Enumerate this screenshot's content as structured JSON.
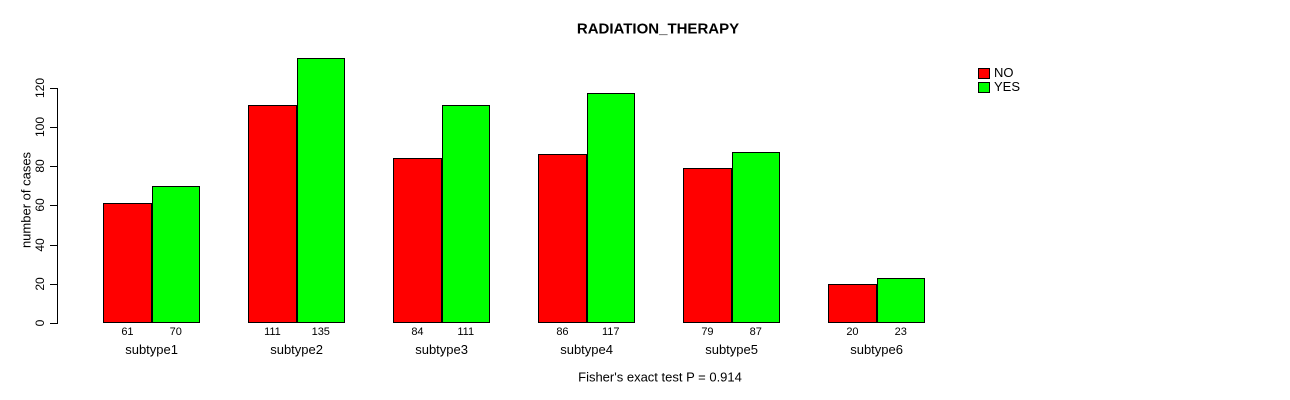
{
  "chart_data": {
    "type": "bar",
    "title": "RADIATION_THERAPY",
    "ylabel": "number of cases",
    "xlabel": "",
    "categories": [
      "subtype1",
      "subtype2",
      "subtype3",
      "subtype4",
      "subtype5",
      "subtype6"
    ],
    "series": [
      {
        "name": "NO",
        "color": "#ff0000",
        "values": [
          61,
          111,
          84,
          86,
          79,
          20
        ]
      },
      {
        "name": "YES",
        "color": "#00ff00",
        "values": [
          70,
          135,
          111,
          117,
          87,
          23
        ]
      }
    ],
    "bar_value_labels_shown": true,
    "yticks": [
      0,
      20,
      40,
      60,
      80,
      100,
      120
    ],
    "ylim": [
      0,
      135
    ],
    "grid": false,
    "legend_position": "top-right",
    "annotation": "Fisher's exact test P = 0.914"
  },
  "colors": {
    "no": "#ff0000",
    "yes": "#00ff00",
    "axis": "#000000",
    "background": "#ffffff"
  }
}
